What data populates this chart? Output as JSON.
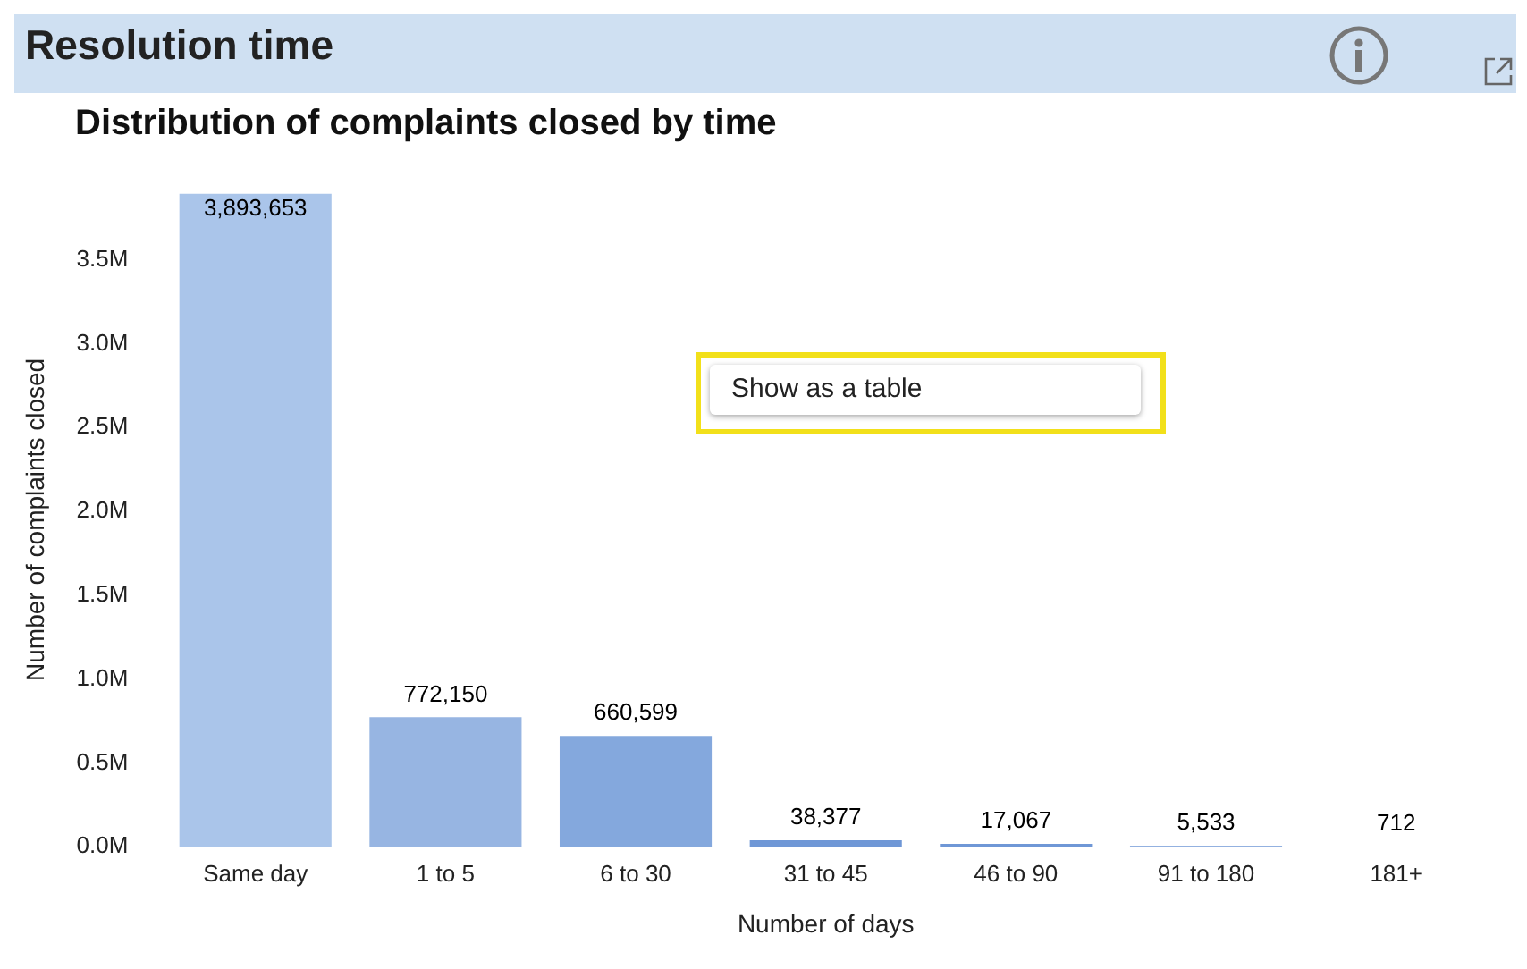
{
  "chart_data": {
    "type": "bar",
    "title": "Resolution time",
    "subtitle": "Distribution of complaints closed by time",
    "xlabel": "Number of days",
    "ylabel": "Number of complaints closed",
    "categories": [
      "Same day",
      "1 to 5",
      "6 to 30",
      "31 to 45",
      "46 to 90",
      "91 to 180",
      "181+"
    ],
    "values": [
      3893653,
      772150,
      660599,
      38377,
      17067,
      5533,
      712
    ],
    "colors": [
      "#aac5ea",
      "#97b5e2",
      "#84a8dd",
      "#6f97d6",
      "#6f97d6",
      "#6f97d6",
      "#6f97d6"
    ],
    "ylim": [
      0,
      3900000
    ],
    "yticks": [
      {
        "value": 0,
        "label": "0.0M"
      },
      {
        "value": 500000,
        "label": "0.5M"
      },
      {
        "value": 1000000,
        "label": "1.0M"
      },
      {
        "value": 1500000,
        "label": "1.5M"
      },
      {
        "value": 2000000,
        "label": "2.0M"
      },
      {
        "value": 2500000,
        "label": "2.5M"
      },
      {
        "value": 3000000,
        "label": "3.0M"
      },
      {
        "value": 3500000,
        "label": "3.5M"
      }
    ],
    "value_labels": [
      "3,893,653",
      "772,150",
      "660,599",
      "38,377",
      "17,067",
      "5,533",
      "712"
    ],
    "grid": false,
    "legend": false,
    "annotations": [
      "Show as a table"
    ]
  }
}
